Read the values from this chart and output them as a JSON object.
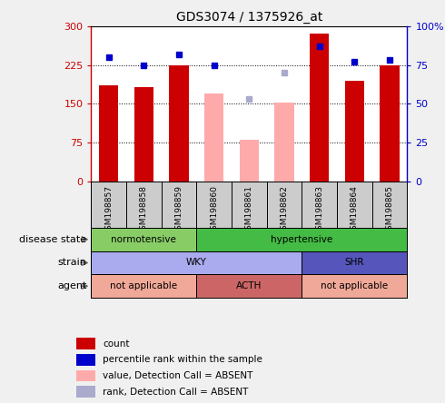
{
  "title": "GDS3074 / 1375926_at",
  "samples": [
    "GSM198857",
    "GSM198858",
    "GSM198859",
    "GSM198860",
    "GSM198861",
    "GSM198862",
    "GSM198863",
    "GSM198864",
    "GSM198865"
  ],
  "count_values": [
    185,
    183,
    225,
    null,
    null,
    null,
    285,
    195,
    225
  ],
  "absent_value_bars": [
    null,
    null,
    null,
    170,
    80,
    152,
    null,
    null,
    null
  ],
  "percentile_dots_present": {
    "0": 80,
    "1": 75,
    "2": 82,
    "3": 75,
    "6": 87,
    "7": 77,
    "8": 78
  },
  "absent_rank_dots": {
    "4": 53,
    "5": 70
  },
  "ylim_left": [
    0,
    300
  ],
  "ylim_right": [
    0,
    100
  ],
  "yticks_left": [
    0,
    75,
    150,
    225,
    300
  ],
  "yticks_right": [
    0,
    25,
    50,
    75,
    100
  ],
  "ytick_labels_left": [
    "0",
    "75",
    "150",
    "225",
    "300"
  ],
  "ytick_labels_right": [
    "0",
    "25",
    "50",
    "75",
    "100%"
  ],
  "hlines": [
    75,
    150,
    225
  ],
  "disease_regions": [
    {
      "label": "normotensive",
      "start": 0,
      "end": 3,
      "color": "#88cc66"
    },
    {
      "label": "hypertensive",
      "start": 3,
      "end": 9,
      "color": "#44bb44"
    }
  ],
  "strain_regions": [
    {
      "label": "WKY",
      "start": 0,
      "end": 6,
      "color": "#aaaaee"
    },
    {
      "label": "SHR",
      "start": 6,
      "end": 9,
      "color": "#5555bb"
    }
  ],
  "agent_regions": [
    {
      "label": "not applicable",
      "start": 0,
      "end": 3,
      "color": "#f0a898"
    },
    {
      "label": "ACTH",
      "start": 3,
      "end": 6,
      "color": "#cc6666"
    },
    {
      "label": "not applicable",
      "start": 6,
      "end": 9,
      "color": "#f0a898"
    }
  ],
  "row_labels": [
    "disease state",
    "strain",
    "agent"
  ],
  "bar_color_present": "#cc0000",
  "bar_color_absent": "#ffaaaa",
  "dot_color_present": "#0000cc",
  "dot_color_absent": "#aaaacc",
  "sample_bg": "#cccccc",
  "fig_bg": "#f0f0f0",
  "plot_bg": "#ffffff",
  "left_axis_color": "#cc0000",
  "right_axis_color": "#0000cc",
  "legend_items": [
    {
      "color": "#cc0000",
      "label": "count"
    },
    {
      "color": "#0000cc",
      "label": "percentile rank within the sample"
    },
    {
      "color": "#ffaaaa",
      "label": "value, Detection Call = ABSENT"
    },
    {
      "color": "#aaaacc",
      "label": "rank, Detection Call = ABSENT"
    }
  ]
}
